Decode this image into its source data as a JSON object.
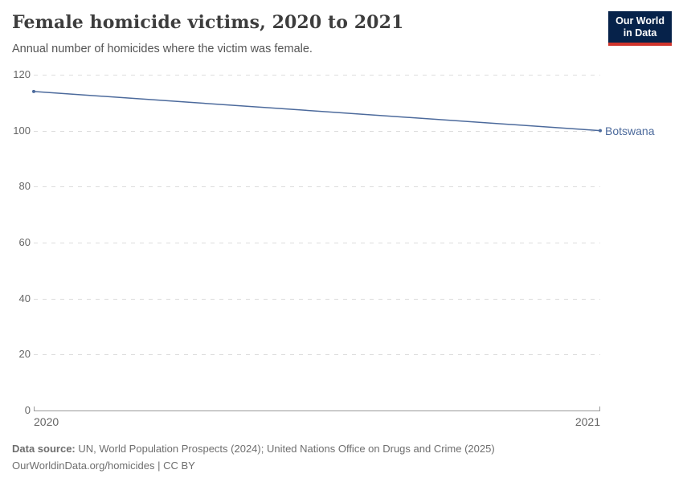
{
  "header": {
    "title": "Female homicide victims, 2020 to 2021",
    "subtitle": "Annual number of homicides where the victim was female.",
    "logo": {
      "line1": "Our World",
      "line2": "in Data"
    }
  },
  "chart_data": {
    "type": "line",
    "title": "Female homicide victims, 2020 to 2021",
    "subtitle": "Annual number of homicides where the victim was female.",
    "x": [
      2020,
      2021
    ],
    "xtick_labels": [
      "2020",
      "2021"
    ],
    "series": [
      {
        "name": "Botswana",
        "values": [
          114,
          100
        ],
        "color": "#4C6A9C"
      }
    ],
    "ylim": [
      0,
      120
    ],
    "yticks": [
      0,
      20,
      40,
      60,
      80,
      100,
      120
    ],
    "grid": true,
    "legend_position": "end-of-line"
  },
  "colors": {
    "series_blue": "#4C6A9C",
    "logo_bg": "#06224a",
    "logo_accent": "#d0342c",
    "grid": "#dcdcdc",
    "axis": "#999999",
    "tick_text": "#666666",
    "title_text": "#3d3d3d",
    "subtitle_text": "#555555",
    "footer_text": "#6e6e6e"
  },
  "footer": {
    "source_label": "Data source:",
    "source_text": " UN, World Population Prospects (2024); United Nations Office on Drugs and Crime (2025)",
    "link_line": "OurWorldinData.org/homicides | CC BY"
  }
}
